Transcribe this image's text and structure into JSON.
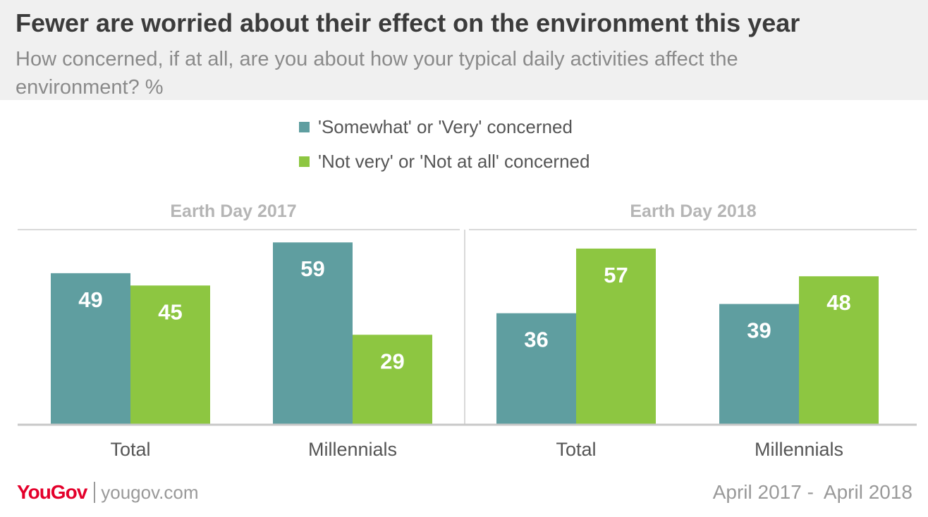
{
  "title": "Fewer are worried about their effect on the environment this year",
  "subtitle": "How concerned, if at all, are you about how your typical daily activities affect the environment? %",
  "legend": [
    {
      "label": "'Somewhat' or 'Very' concerned",
      "color": "#5f9ea0"
    },
    {
      "label": "'Not very' or 'Not at all' concerned",
      "color": "#8dc641"
    }
  ],
  "footer": {
    "brand": "YouGov",
    "site": "yougov.com",
    "date_range": "April 2017 -  April 2018"
  },
  "chart_data": {
    "type": "bar",
    "title": "Fewer are worried about their effect on the environment this year",
    "ylim": [
      0,
      65
    ],
    "groups": [
      {
        "title": "Earth Day 2017",
        "categories": [
          "Total",
          "Millennials"
        ]
      },
      {
        "title": "Earth Day 2018",
        "categories": [
          "Total",
          "Millennials"
        ]
      }
    ],
    "series": [
      {
        "name": "'Somewhat' or 'Very' concerned",
        "color": "#5f9ea0",
        "values": [
          49,
          59,
          36,
          39
        ]
      },
      {
        "name": "'Not very' or 'Not at all' concerned",
        "color": "#8dc641",
        "values": [
          45,
          29,
          57,
          48
        ]
      }
    ]
  }
}
